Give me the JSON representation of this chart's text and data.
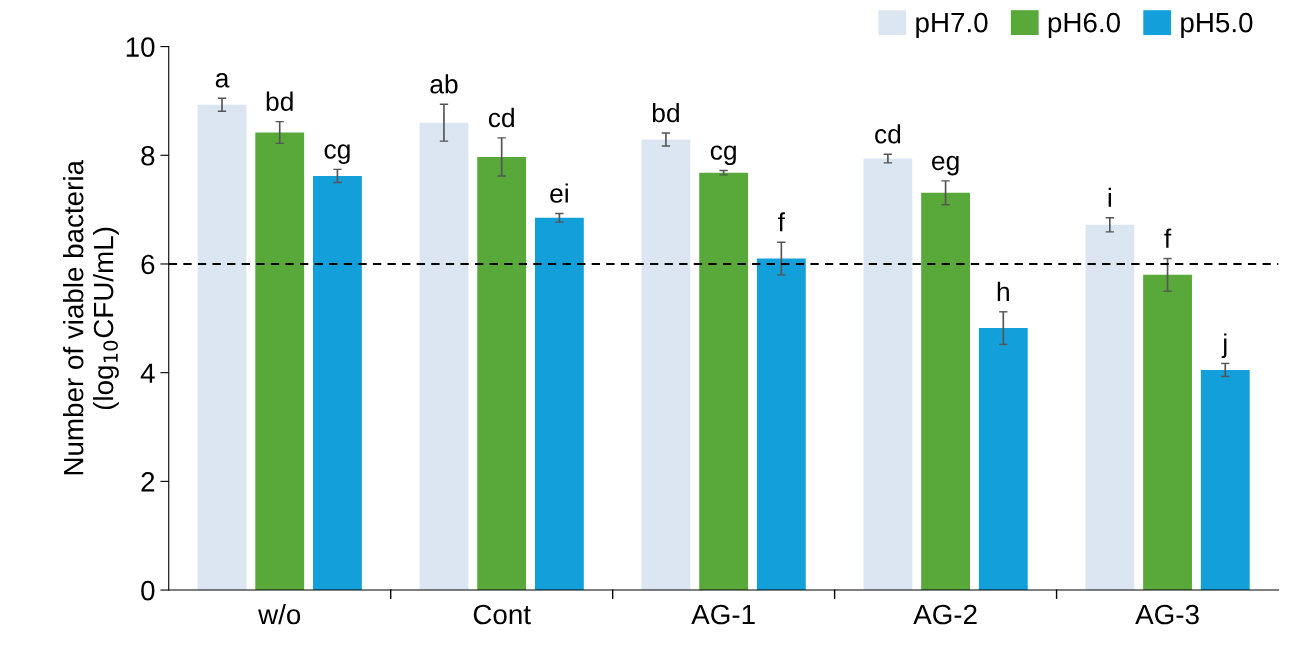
{
  "chart_data": {
    "type": "bar",
    "ylabel": "Number of viable bacteria\n(log$_{10}$CFU/mL)",
    "categories": [
      "w/o",
      "Cont",
      "AG-1",
      "AG-2",
      "AG-3"
    ],
    "series": [
      {
        "name": "pH7.0",
        "color": "#dce6f2",
        "values": [
          8.93,
          8.6,
          8.29,
          7.94,
          6.72
        ],
        "errors": [
          0.12,
          0.34,
          0.12,
          0.08,
          0.13
        ],
        "value_labels": [
          "a",
          "ab",
          "bd",
          "cd",
          "i"
        ]
      },
      {
        "name": "pH6.0",
        "color": "#59a83a",
        "values": [
          8.42,
          7.97,
          7.68,
          7.31,
          5.8
        ],
        "errors": [
          0.2,
          0.35,
          0.04,
          0.22,
          0.3
        ],
        "value_labels": [
          "bd",
          "cd",
          "cg",
          "eg",
          "f"
        ]
      },
      {
        "name": "pH5.0",
        "color": "#139fd9",
        "values": [
          7.62,
          6.85,
          6.1,
          4.82,
          4.05
        ],
        "errors": [
          0.12,
          0.08,
          0.3,
          0.3,
          0.12
        ],
        "value_labels": [
          "cg",
          "ei",
          "f",
          "h",
          "j"
        ]
      }
    ],
    "ylim": [
      0,
      10
    ],
    "yticks": [
      0,
      2,
      4,
      6,
      8,
      10
    ],
    "ref_lines": [
      {
        "axis": "y",
        "value": 6,
        "color": "#000000",
        "line_style": "dashed"
      }
    ],
    "grid": false,
    "legend": "top right"
  }
}
